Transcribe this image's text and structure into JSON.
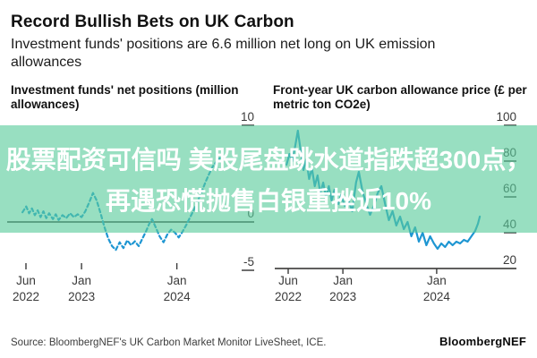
{
  "header": {
    "title": "Record Bullish Bets on UK Carbon",
    "subtitle": "Investment funds' positions are 6.6 million net long on UK emission allowances"
  },
  "banner": {
    "line1": "股票配资可信吗 美股尾盘跳水道指跌超300点，",
    "line2": "再遇恐慌抛售白银重挫近10%",
    "bg_color": "rgba(88,203,155,0.62)",
    "text_color": "#ffffff"
  },
  "footer": {
    "source": "Source: BloombergNEF's UK Carbon Market Monitor LiveSheet, ICE.",
    "logo": "BloombergNEF"
  },
  "colors": {
    "line": "#1E96D2",
    "axis": "#2b2a28",
    "tick_label": "#3a3a3a",
    "stub": "#555555"
  },
  "chart_data": [
    {
      "type": "line",
      "style": "dashed",
      "title": "Investment funds' net positions (million allowances)",
      "ylabel": "million allowances",
      "ylim": [
        -5,
        10
      ],
      "yticks": [
        {
          "v": 10,
          "label": "10",
          "stub": true
        },
        {
          "v": 0,
          "label": "0",
          "stub": false
        },
        {
          "v": -5,
          "label": "-5",
          "stub": true
        }
      ],
      "xticks": [
        {
          "year": 2022.417,
          "label": [
            "Jun",
            "2022"
          ]
        },
        {
          "year": 2023.0,
          "label": [
            "Jan",
            "2023"
          ]
        },
        {
          "year": 2024.0,
          "label": [
            "Jan",
            "2024"
          ]
        }
      ],
      "series": [
        {
          "name": "Net positions",
          "points": [
            [
              2022.38,
              1.0
            ],
            [
              2022.42,
              1.6
            ],
            [
              2022.45,
              0.9
            ],
            [
              2022.48,
              1.4
            ],
            [
              2022.51,
              0.7
            ],
            [
              2022.54,
              1.2
            ],
            [
              2022.57,
              0.5
            ],
            [
              2022.6,
              1.1
            ],
            [
              2022.63,
              0.4
            ],
            [
              2022.66,
              0.9
            ],
            [
              2022.7,
              0.3
            ],
            [
              2022.73,
              0.8
            ],
            [
              2022.76,
              0.2
            ],
            [
              2022.8,
              0.7
            ],
            [
              2022.84,
              0.4
            ],
            [
              2022.88,
              0.9
            ],
            [
              2022.92,
              0.5
            ],
            [
              2022.96,
              0.8
            ],
            [
              2023.0,
              0.5
            ],
            [
              2023.04,
              1.1
            ],
            [
              2023.08,
              2.0
            ],
            [
              2023.12,
              3.0
            ],
            [
              2023.16,
              2.2
            ],
            [
              2023.2,
              0.9
            ],
            [
              2023.24,
              -0.5
            ],
            [
              2023.28,
              -1.7
            ],
            [
              2023.32,
              -2.5
            ],
            [
              2023.36,
              -2.9
            ],
            [
              2023.4,
              -2.1
            ],
            [
              2023.44,
              -2.7
            ],
            [
              2023.48,
              -1.9
            ],
            [
              2023.52,
              -2.4
            ],
            [
              2023.56,
              -2.0
            ],
            [
              2023.6,
              -2.5
            ],
            [
              2023.64,
              -1.7
            ],
            [
              2023.68,
              -0.9
            ],
            [
              2023.71,
              -0.2
            ],
            [
              2023.74,
              0.3
            ],
            [
              2023.78,
              -0.6
            ],
            [
              2023.82,
              -1.5
            ],
            [
              2023.86,
              -2.1
            ],
            [
              2023.9,
              -1.3
            ],
            [
              2023.94,
              -0.8
            ],
            [
              2023.98,
              -1.1
            ],
            [
              2024.02,
              -1.6
            ],
            [
              2024.06,
              -1.0
            ],
            [
              2024.1,
              -0.3
            ],
            [
              2024.14,
              0.5
            ],
            [
              2024.18,
              1.3
            ],
            [
              2024.22,
              2.2
            ],
            [
              2024.26,
              3.1
            ],
            [
              2024.3,
              4.1
            ],
            [
              2024.34,
              5.0
            ],
            [
              2024.38,
              5.8
            ],
            [
              2024.42,
              6.3
            ],
            [
              2024.45,
              6.6
            ]
          ]
        }
      ]
    },
    {
      "type": "line",
      "style": "solid",
      "title": "Front-year UK carbon allowance price (£ per metric ton CO2e)",
      "ylabel": "£ per metric ton CO2e",
      "ylim": [
        20,
        100
      ],
      "yticks": [
        {
          "v": 100,
          "label": "100",
          "stub": true
        },
        {
          "v": 80,
          "label": "80",
          "stub": true
        },
        {
          "v": 60,
          "label": "60",
          "stub": true
        },
        {
          "v": 40,
          "label": "40",
          "stub": true
        },
        {
          "v": 20,
          "label": "20",
          "stub": false
        }
      ],
      "xticks": [
        {
          "year": 2022.417,
          "label": [
            "Jun",
            "2022"
          ]
        },
        {
          "year": 2023.0,
          "label": [
            "Jan",
            "2023"
          ]
        },
        {
          "year": 2024.0,
          "label": [
            "Jan",
            "2024"
          ]
        }
      ],
      "series": [
        {
          "name": "UKA front-year price",
          "points": [
            [
              2022.4,
              78
            ],
            [
              2022.43,
              84
            ],
            [
              2022.46,
              80
            ],
            [
              2022.49,
              88
            ],
            [
              2022.52,
              97
            ],
            [
              2022.55,
              86
            ],
            [
              2022.58,
              75
            ],
            [
              2022.61,
              81
            ],
            [
              2022.64,
              70
            ],
            [
              2022.67,
              76
            ],
            [
              2022.7,
              66
            ],
            [
              2022.73,
              72
            ],
            [
              2022.76,
              62
            ],
            [
              2022.79,
              68
            ],
            [
              2022.82,
              60
            ],
            [
              2022.85,
              66
            ],
            [
              2022.88,
              58
            ],
            [
              2022.91,
              64
            ],
            [
              2022.95,
              56
            ],
            [
              2022.98,
              61
            ],
            [
              2023.02,
              55
            ],
            [
              2023.06,
              58
            ],
            [
              2023.1,
              52
            ],
            [
              2023.14,
              68
            ],
            [
              2023.17,
              74
            ],
            [
              2023.21,
              63
            ],
            [
              2023.25,
              56
            ],
            [
              2023.29,
              50
            ],
            [
              2023.33,
              55
            ],
            [
              2023.37,
              62
            ],
            [
              2023.41,
              66
            ],
            [
              2023.45,
              56
            ],
            [
              2023.49,
              47
            ],
            [
              2023.53,
              52
            ],
            [
              2023.57,
              44
            ],
            [
              2023.61,
              49
            ],
            [
              2023.65,
              42
            ],
            [
              2023.69,
              46
            ],
            [
              2023.73,
              38
            ],
            [
              2023.77,
              43
            ],
            [
              2023.81,
              35
            ],
            [
              2023.85,
              40
            ],
            [
              2023.89,
              33
            ],
            [
              2023.93,
              38
            ],
            [
              2023.97,
              34
            ],
            [
              2024.01,
              31
            ],
            [
              2024.05,
              34
            ],
            [
              2024.09,
              32
            ],
            [
              2024.13,
              35
            ],
            [
              2024.17,
              33
            ],
            [
              2024.21,
              35
            ],
            [
              2024.25,
              34
            ],
            [
              2024.29,
              36
            ],
            [
              2024.33,
              35
            ],
            [
              2024.37,
              38
            ],
            [
              2024.41,
              41
            ],
            [
              2024.44,
              45
            ],
            [
              2024.46,
              49
            ]
          ]
        }
      ]
    }
  ]
}
